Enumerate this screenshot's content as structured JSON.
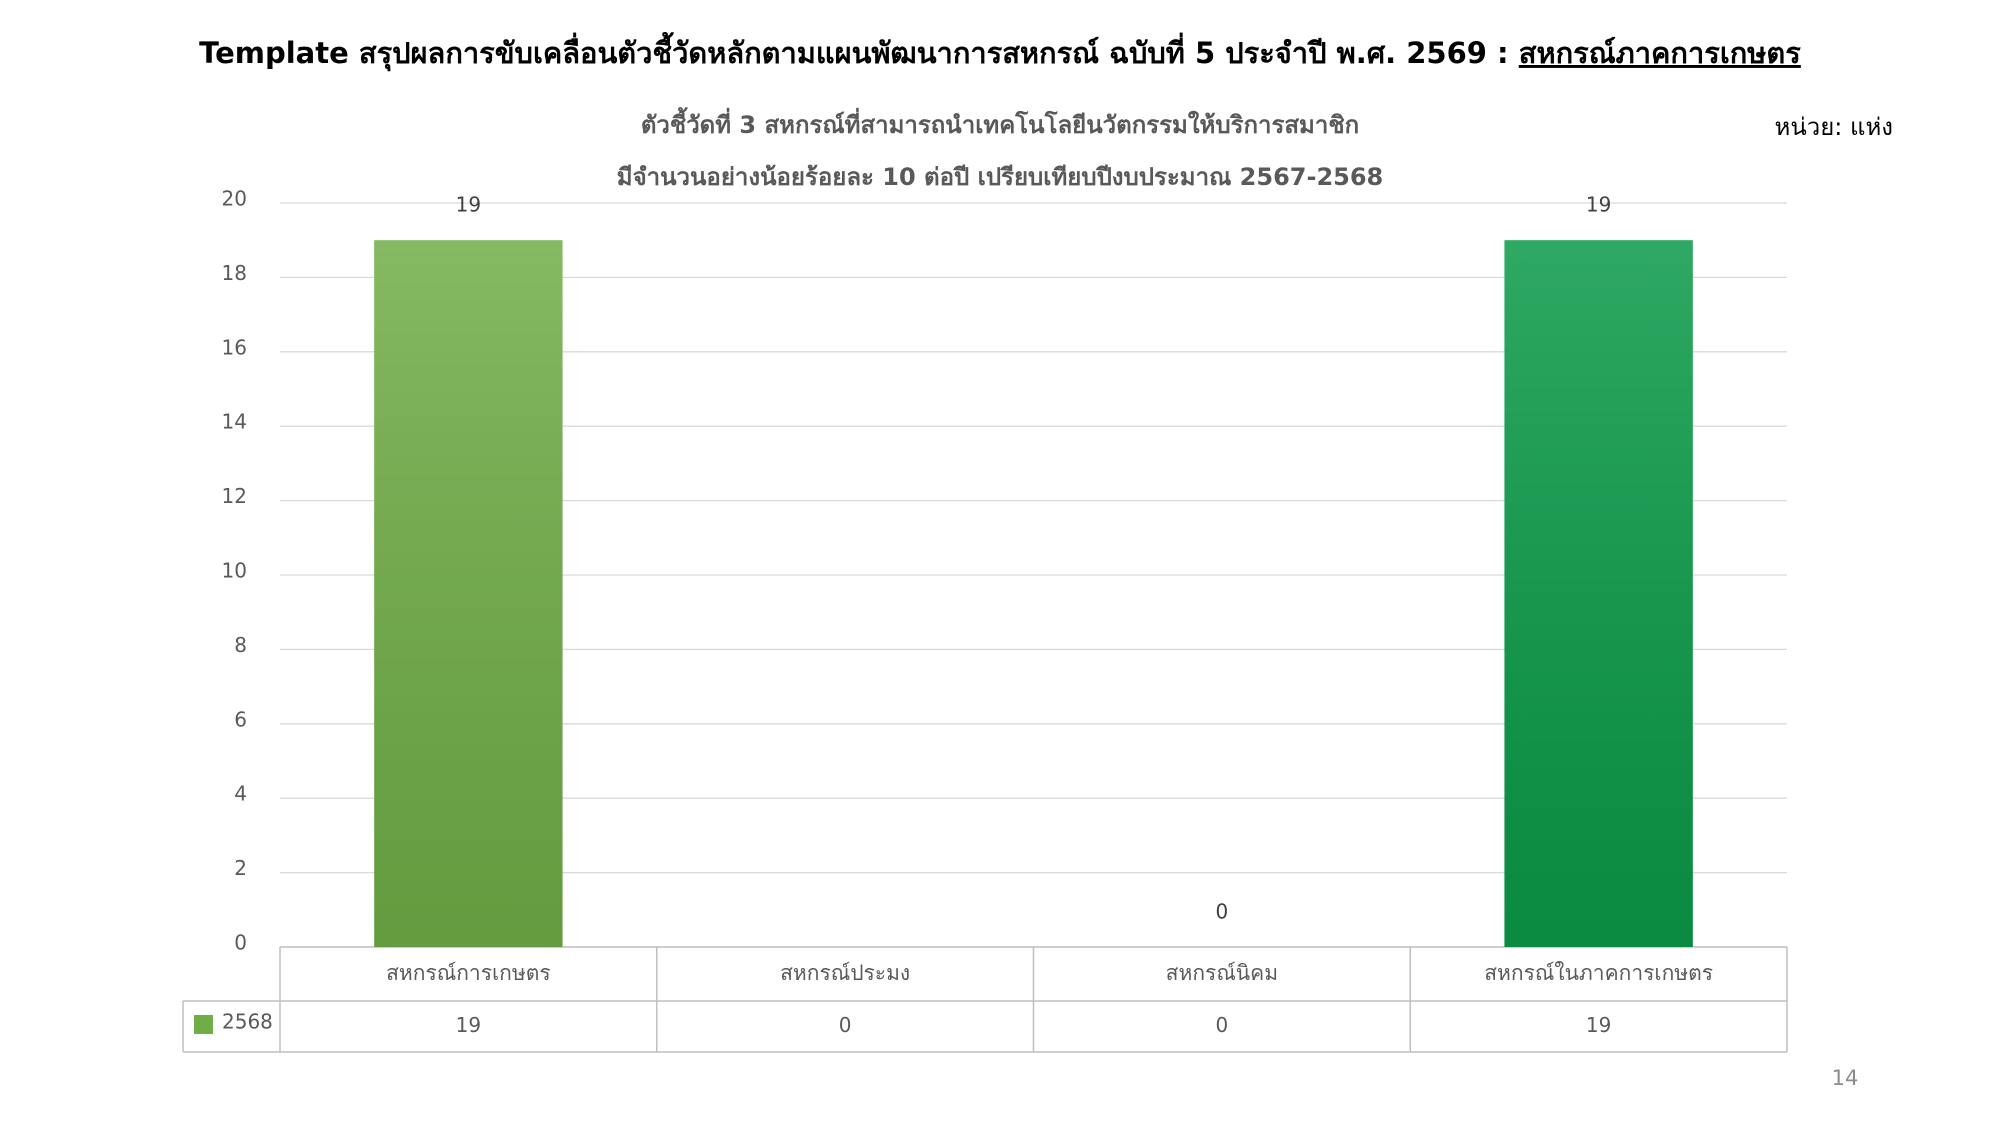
{
  "slide": {
    "title": "Template สรุปผลการขับเคลื่อนตัวชี้วัดหลักตามแผนพัฒนาการสหกรณ์ ฉบับที่ 5 ประจำปี พ.ศ. 2569 : ",
    "title_underlined": "สหกรณ์ภาคการเกษตร",
    "unit": "หน่วย: แห่ง",
    "page_number": "14"
  },
  "chart_data": {
    "type": "bar",
    "title": [
      "ตัวชี้วัดที่ 3 สหกรณ์ที่สามารถนำเทคโนโลยีนวัตกรรมให้บริการสมาชิก",
      "มีจำนวนอย่างน้อยร้อยละ 10 ต่อปี เปรียบเทียบปีงบประมาณ 2567-2568"
    ],
    "categories": [
      "สหกรณ์การเกษตร",
      "สหกรณ์ประมง",
      "สหกรณ์นิคม",
      "สหกรณ์ในภาคการเกษตร"
    ],
    "series": [
      {
        "name": "2568",
        "color": "#70ad47",
        "point_colors": [
          "#70ad47",
          "#70ad47",
          "#70ad47",
          "#0a9a48"
        ],
        "values": [
          19,
          0,
          0,
          19
        ],
        "value_labels": [
          "19",
          null,
          "0",
          "19"
        ]
      }
    ],
    "ylim": [
      0,
      20
    ],
    "yticks": [
      0,
      2,
      4,
      6,
      8,
      10,
      12,
      14,
      16,
      18,
      20
    ],
    "grid": true,
    "legend": "data-table"
  }
}
